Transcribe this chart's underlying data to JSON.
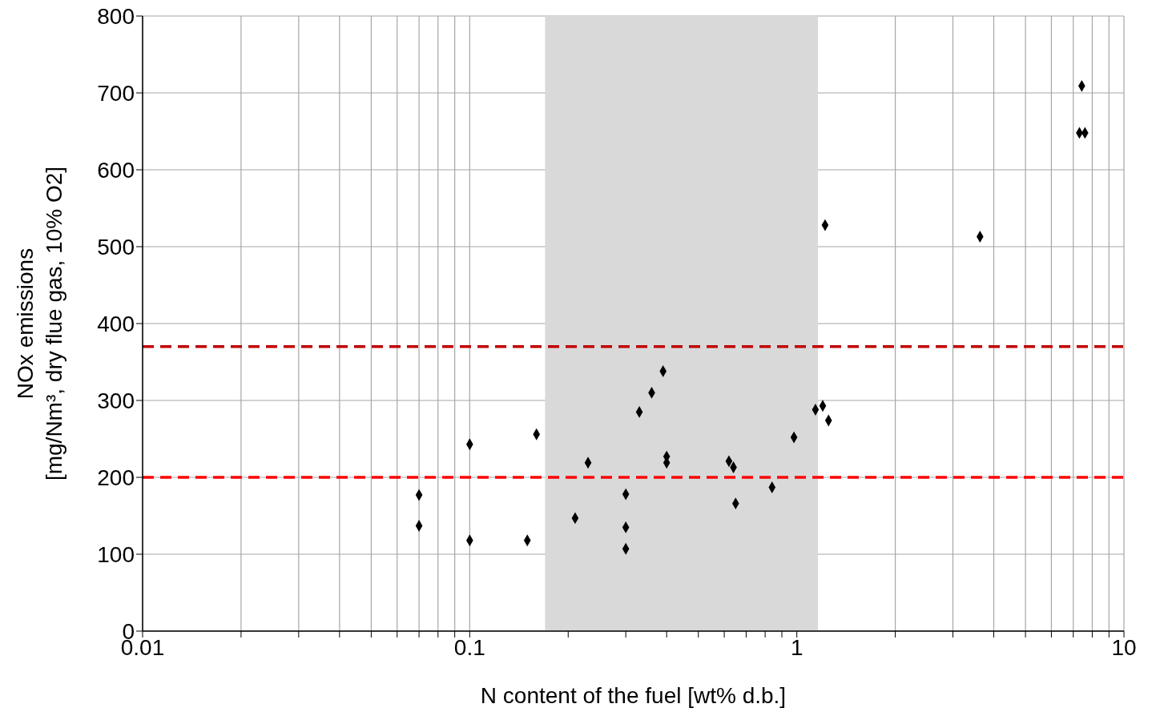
{
  "chart_data": {
    "type": "scatter",
    "xlabel": "N content of the fuel [wt% d.b.]",
    "ylabel": "NOx emissions\n[mg/Nm³, dry flue gas, 10% O2]",
    "x": [
      0.07,
      0.07,
      0.1,
      0.1,
      0.15,
      0.16,
      0.21,
      0.23,
      0.3,
      0.3,
      0.3,
      0.33,
      0.36,
      0.39,
      0.4,
      0.4,
      0.62,
      0.64,
      0.65,
      0.84,
      0.98,
      1.14,
      1.2,
      1.25,
      1.22,
      3.63,
      7.43,
      7.31,
      7.6
    ],
    "series": [
      {
        "color": "#000000",
        "values": [
          177,
          137,
          243,
          118,
          118,
          256,
          147,
          219,
          178,
          135,
          107,
          285,
          310,
          338,
          227,
          219,
          221,
          213,
          166,
          187,
          252,
          288,
          293,
          274,
          528,
          513,
          709,
          648,
          648
        ]
      }
    ],
    "log": "x",
    "marker": "diamond",
    "grid": true,
    "xlim": [
      0.01,
      10
    ],
    "ylim": [
      0,
      800
    ],
    "xticks": [
      0.01,
      {
        "value": 0.02,
        "label": null
      },
      {
        "value": 0.03,
        "label": null
      },
      {
        "value": 0.04,
        "label": null
      },
      {
        "value": 0.05,
        "label": null
      },
      {
        "value": 0.06,
        "label": null
      },
      {
        "value": 0.07,
        "label": null
      },
      {
        "value": 0.08,
        "label": null
      },
      {
        "value": 0.09,
        "label": null
      },
      0.1,
      {
        "value": 0.2,
        "label": null
      },
      {
        "value": 0.3,
        "label": null
      },
      {
        "value": 0.4,
        "label": null
      },
      {
        "value": 0.5,
        "label": null
      },
      {
        "value": 0.6,
        "label": null
      },
      {
        "value": 0.7,
        "label": null
      },
      {
        "value": 0.8,
        "label": null
      },
      {
        "value": 0.9,
        "label": null
      },
      1,
      {
        "value": 2,
        "label": null
      },
      {
        "value": 3,
        "label": null
      },
      {
        "value": 4,
        "label": null
      },
      {
        "value": 5,
        "label": null
      },
      {
        "value": 6,
        "label": null
      },
      {
        "value": 7,
        "label": null
      },
      {
        "value": 8,
        "label": null
      },
      {
        "value": 9,
        "label": null
      },
      10
    ],
    "yticks": [
      0,
      100,
      200,
      300,
      400,
      500,
      600,
      700,
      800
    ],
    "ref_lines": [
      {
        "axis": "y",
        "value": 370,
        "color": "#c00000",
        "line_style": "dashed"
      },
      {
        "axis": "y",
        "value": 200,
        "color": "#ff0000",
        "line_style": "dashed"
      }
    ],
    "bands": [
      {
        "axis": "x",
        "from": 0.17,
        "to": 1.16,
        "color": "#d9d9d9"
      }
    ]
  }
}
